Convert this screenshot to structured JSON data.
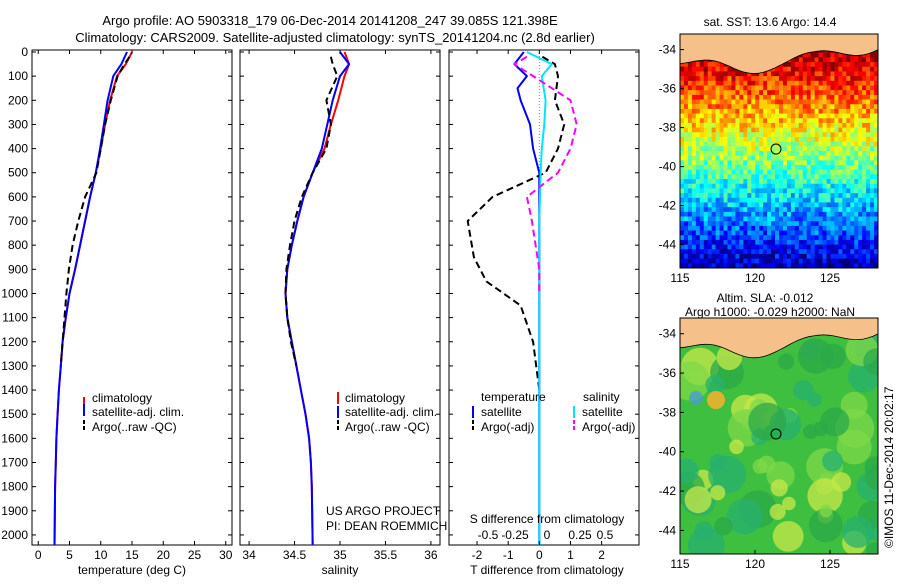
{
  "header": {
    "title_line1": "Argo profile: AO 5903318_179 06-Dec-2014 20141208_247 39.085S 121.398E",
    "title_line2": "Climatology: CARS2009. Satellite-adjusted climatology: synTS_20141204.nc (2.8d earlier)"
  },
  "colors": {
    "climatology": "#ff0000",
    "satellite": "#0000ff",
    "argo": "#000000",
    "salinity_sat": "#00e5ff",
    "salinity_argo": "#ff00ff",
    "land": "#f6c08a"
  },
  "labels": {
    "credit_line1": "US ARGO PROJECT",
    "credit_line2": "PI: DEAN ROEMMICH",
    "s_diff_label": "S difference from climatology",
    "imos_stamp": "©IMOS 11-Dec-2014 20:02:17",
    "sst_title": "sat. SST: 13.6 Argo: 14.4",
    "sla_title1": "Altim. SLA: -0.012",
    "sla_title2": "Argo h1000: -0.029 h2000: NaN"
  },
  "chart_data": [
    {
      "type": "line",
      "name": "temperature",
      "xlabel": "temperature (deg C)",
      "ylabel": "",
      "xlim": [
        -1,
        31
      ],
      "ylim": [
        2050,
        0
      ],
      "x_ticks": [
        0,
        5,
        10,
        15,
        20,
        25,
        30
      ],
      "y_ticks": [
        0,
        100,
        200,
        300,
        400,
        500,
        600,
        700,
        800,
        900,
        1000,
        1100,
        1200,
        1300,
        1400,
        1500,
        1600,
        1700,
        1800,
        1900,
        2000
      ],
      "legend": [
        "climatology",
        "satellite-adj. clim.",
        "Argo(..raw -QC)"
      ],
      "legend_placement": "lower-center",
      "series": [
        {
          "name": "climatology",
          "color": "#ff0000",
          "style": "solid",
          "x": [
            15.0,
            14.0,
            12.6,
            11.5,
            10.7,
            10.0,
            9.2,
            8.3,
            7.5,
            6.7,
            5.9,
            5.0,
            4.4,
            3.9,
            3.6,
            3.3,
            3.1,
            2.9,
            2.8,
            2.7,
            2.6
          ],
          "y": [
            0,
            50,
            100,
            200,
            300,
            400,
            500,
            600,
            700,
            800,
            900,
            1000,
            1100,
            1200,
            1300,
            1400,
            1500,
            1600,
            1700,
            1800,
            2050
          ]
        },
        {
          "name": "satellite-adj. clim.",
          "color": "#0000ff",
          "style": "solid",
          "x": [
            14.2,
            13.3,
            12.0,
            11.1,
            10.5,
            9.9,
            9.2,
            8.3,
            7.5,
            6.7,
            5.9,
            5.0,
            4.4,
            3.9,
            3.6,
            3.3,
            3.1,
            2.9,
            2.8,
            2.7,
            2.6
          ],
          "y": [
            0,
            50,
            100,
            200,
            300,
            400,
            500,
            600,
            700,
            800,
            900,
            1000,
            1100,
            1200,
            1300,
            1400,
            1500,
            1600,
            1700,
            1800,
            2050
          ]
        },
        {
          "name": "Argo(..raw -QC)",
          "color": "#000000",
          "style": "dashed",
          "x": [
            14.6,
            13.8,
            12.7,
            11.6,
            10.7,
            10.0,
            9.3,
            7.5,
            6.4,
            5.5,
            4.9,
            4.5,
            4.2,
            3.9,
            3.6
          ],
          "y": [
            20,
            50,
            100,
            200,
            300,
            400,
            500,
            600,
            700,
            800,
            900,
            1000,
            1100,
            1200,
            1300
          ]
        }
      ]
    },
    {
      "type": "line",
      "name": "salinity",
      "xlabel": "salinity",
      "ylabel": "",
      "xlim": [
        33.9,
        36.1
      ],
      "ylim": [
        2050,
        0
      ],
      "x_ticks": [
        34,
        34.5,
        35,
        35.5,
        36
      ],
      "legend": [
        "climatology",
        "satellite-adj. clim.",
        "Argo(..raw -QC)"
      ],
      "legend_placement": "lower-right",
      "series": [
        {
          "name": "climatology",
          "color": "#ff0000",
          "style": "solid",
          "x": [
            35.05,
            35.1,
            35.05,
            34.98,
            34.9,
            34.83,
            34.7,
            34.6,
            34.53,
            34.47,
            34.42,
            34.4,
            34.42,
            34.47,
            34.52,
            34.57,
            34.62,
            34.66,
            34.68,
            34.69,
            34.7
          ],
          "y": [
            0,
            50,
            100,
            200,
            300,
            400,
            500,
            600,
            700,
            800,
            900,
            1000,
            1100,
            1200,
            1300,
            1400,
            1500,
            1600,
            1700,
            1800,
            2050
          ]
        },
        {
          "name": "satellite-adj. clim.",
          "color": "#0000ff",
          "style": "solid",
          "x": [
            35.0,
            35.1,
            35.0,
            34.92,
            34.86,
            34.8,
            34.7,
            34.6,
            34.53,
            34.47,
            34.42,
            34.4,
            34.42,
            34.47,
            34.52,
            34.57,
            34.62,
            34.66,
            34.68,
            34.69,
            34.7
          ],
          "y": [
            0,
            50,
            100,
            200,
            300,
            400,
            500,
            600,
            700,
            800,
            900,
            1000,
            1100,
            1200,
            1300,
            1400,
            1500,
            1600,
            1700,
            1800,
            2050
          ]
        },
        {
          "name": "Argo(..raw -QC)",
          "color": "#000000",
          "style": "dashed",
          "x": [
            34.9,
            34.92,
            34.97,
            34.85,
            34.9,
            34.85,
            34.7,
            34.58,
            34.5,
            34.45,
            34.41,
            34.4,
            34.42,
            34.46,
            34.52
          ],
          "y": [
            20,
            50,
            100,
            200,
            300,
            400,
            500,
            600,
            700,
            800,
            900,
            1000,
            1100,
            1200,
            1300
          ]
        }
      ]
    },
    {
      "type": "line",
      "name": "difference",
      "xlabel": "T difference from climatology",
      "ylabel": "",
      "xlim": [
        -2.9,
        3.2
      ],
      "ylim": [
        2050,
        0
      ],
      "x_ticks": [
        -2,
        -1,
        0,
        1,
        2
      ],
      "x2_ticks": [
        -0.5,
        -0.25,
        0,
        0.25,
        0.5
      ],
      "legend": [
        "temperature",
        "satellite",
        "Argo(-adj)",
        "salinity",
        "satellite",
        "Argo(-adj)"
      ],
      "legend_placement": "lower-center",
      "series": [
        {
          "name": "satellite",
          "group": "temperature",
          "color": "#0000ff",
          "style": "solid",
          "x": [
            -0.5,
            -0.8,
            -0.4,
            -0.7,
            -0.6,
            -0.3,
            -0.2,
            0,
            0,
            0,
            0,
            0,
            0
          ],
          "y": [
            0,
            50,
            100,
            150,
            200,
            300,
            400,
            500,
            700,
            1000,
            1400,
            1800,
            2050
          ]
        },
        {
          "name": "Argo(-adj)",
          "group": "temperature",
          "color": "#000000",
          "style": "dashed",
          "x": [
            0.1,
            0.5,
            0.6,
            0.5,
            0.8,
            0.6,
            0.2,
            -1.5,
            -2.3,
            -2.1,
            -1.7,
            -0.6,
            -0.2,
            0
          ],
          "y": [
            20,
            50,
            100,
            200,
            300,
            400,
            500,
            600,
            700,
            850,
            950,
            1050,
            1200,
            1400
          ]
        },
        {
          "name": "satellite",
          "group": "salinity",
          "color": "#00e5ff",
          "style": "solid",
          "x": [
            -0.1,
            0.1,
            0.02,
            0.05,
            0.04,
            0.02,
            0.01,
            0,
            0,
            0,
            0,
            0
          ],
          "y": [
            0,
            50,
            100,
            200,
            300,
            400,
            500,
            700,
            1000,
            1400,
            1800,
            2050
          ]
        },
        {
          "name": "Argo(-adj)",
          "group": "salinity",
          "color": "#ff00ff",
          "style": "dashed",
          "x": [
            -0.1,
            -0.2,
            -0.05,
            0.25,
            0.3,
            0.25,
            0.15,
            -0.1,
            -0.06,
            -0.03,
            0,
            0
          ],
          "y": [
            20,
            50,
            100,
            200,
            300,
            400,
            500,
            600,
            700,
            800,
            900,
            1000
          ]
        }
      ]
    },
    {
      "type": "heatmap",
      "name": "sst_map",
      "title": "sat. SST: 13.6 Argo: 14.4",
      "x_ticks": [
        115,
        120,
        125
      ],
      "y_ticks": [
        -34,
        -36,
        -38,
        -40,
        -42,
        -44
      ],
      "xlim": [
        115,
        128.2
      ],
      "ylim": [
        -45.2,
        -33.2
      ],
      "float_position": [
        121.4,
        -39.1
      ]
    },
    {
      "type": "heatmap",
      "name": "sla_map",
      "title": "Altim. SLA: -0.012",
      "subtitle": "Argo h1000: -0.029 h2000: NaN",
      "x_ticks": [
        115,
        120,
        125
      ],
      "y_ticks": [
        -34,
        -36,
        -38,
        -40,
        -42,
        -44
      ],
      "xlim": [
        115,
        128.2
      ],
      "ylim": [
        -45.2,
        -33.2
      ],
      "float_position": [
        121.4,
        -39.1
      ]
    }
  ]
}
